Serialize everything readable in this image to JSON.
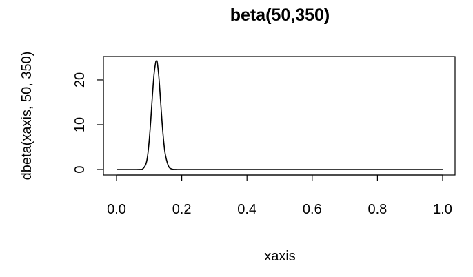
{
  "chart_data": {
    "type": "line",
    "title": "beta(50,350)",
    "xlabel": "xaxis",
    "ylabel": "dbeta(xaxis, 50, 350)",
    "xlim": [
      0,
      1
    ],
    "ylim": [
      0,
      24.3
    ],
    "x_ticks": [
      0.0,
      0.2,
      0.4,
      0.6,
      0.8,
      1.0
    ],
    "x_tick_labels": [
      "0.0",
      "0.2",
      "0.4",
      "0.6",
      "0.8",
      "1.0"
    ],
    "y_ticks": [
      0,
      10,
      20
    ],
    "y_tick_labels": [
      "0",
      "10",
      "20"
    ],
    "grid": false,
    "legend": "none",
    "series": [
      {
        "x": [
          0.0,
          0.05,
          0.07,
          0.08,
          0.09,
          0.095,
          0.1,
          0.105,
          0.11,
          0.115,
          0.12,
          0.1225,
          0.125,
          0.13,
          0.135,
          0.14,
          0.145,
          0.15,
          0.16,
          0.17,
          0.18,
          0.2,
          0.3,
          0.5,
          0.7,
          1.0
        ],
        "y": [
          0,
          0,
          0.01,
          0.12,
          1.2,
          2.9,
          6.3,
          11.0,
          16.5,
          21.2,
          23.9,
          24.2,
          23.9,
          20.5,
          15.4,
          10.2,
          6.0,
          3.2,
          0.65,
          0.1,
          0.01,
          0,
          0,
          0,
          0,
          0
        ]
      }
    ]
  }
}
